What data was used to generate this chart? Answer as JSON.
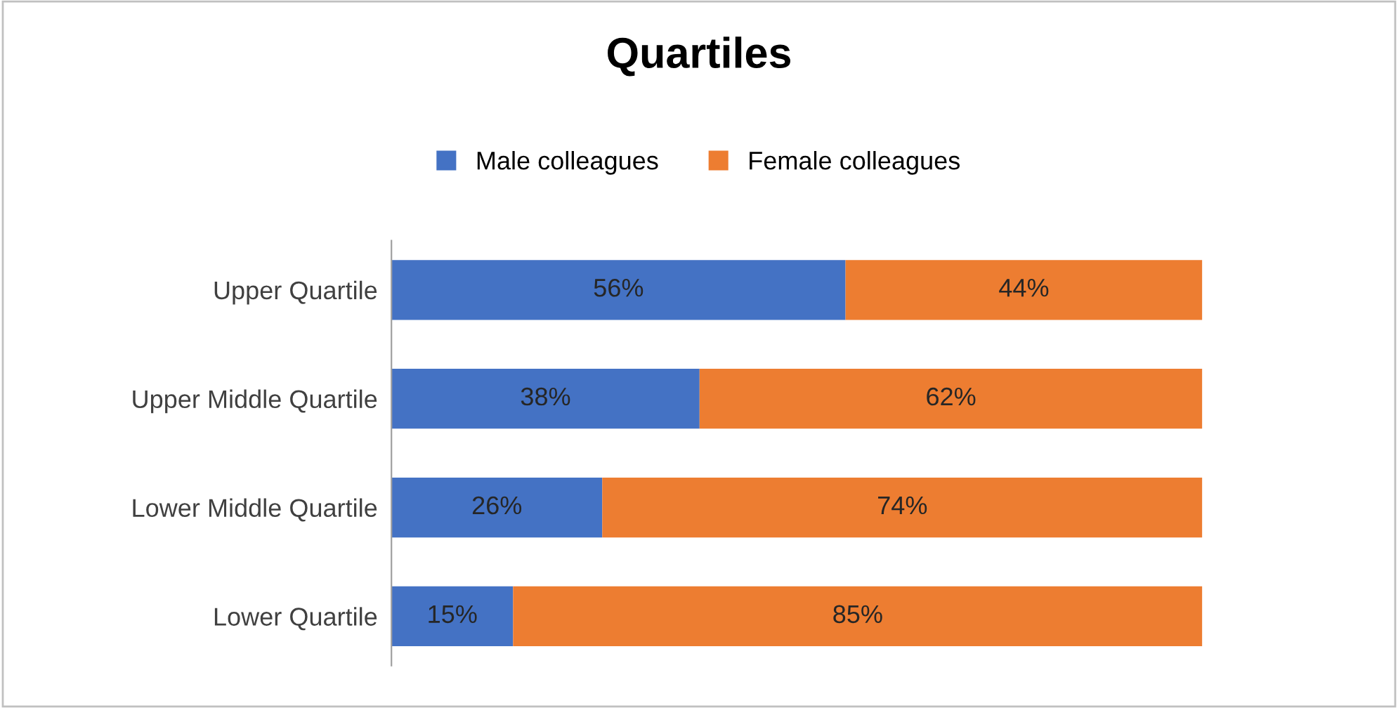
{
  "chart_data": {
    "type": "bar",
    "title": "Quartiles",
    "orientation": "horizontal",
    "stacked": true,
    "legend": "top",
    "grid": false,
    "tick_labels": "y",
    "categories": [
      "Upper Quartile",
      "Upper Middle Quartile",
      "Lower Middle Quartile",
      "Lower Quartile"
    ],
    "series": [
      {
        "name": "Male colleagues",
        "color": "#4472c4",
        "values": [
          56,
          38,
          26,
          15
        ],
        "value_labels": [
          "56%",
          "38%",
          "26%",
          "15%"
        ]
      },
      {
        "name": "Female colleagues",
        "color": "#ed7d31",
        "values": [
          44,
          62,
          74,
          85
        ],
        "value_labels": [
          "44%",
          "62%",
          "74%",
          "85%"
        ]
      }
    ]
  }
}
